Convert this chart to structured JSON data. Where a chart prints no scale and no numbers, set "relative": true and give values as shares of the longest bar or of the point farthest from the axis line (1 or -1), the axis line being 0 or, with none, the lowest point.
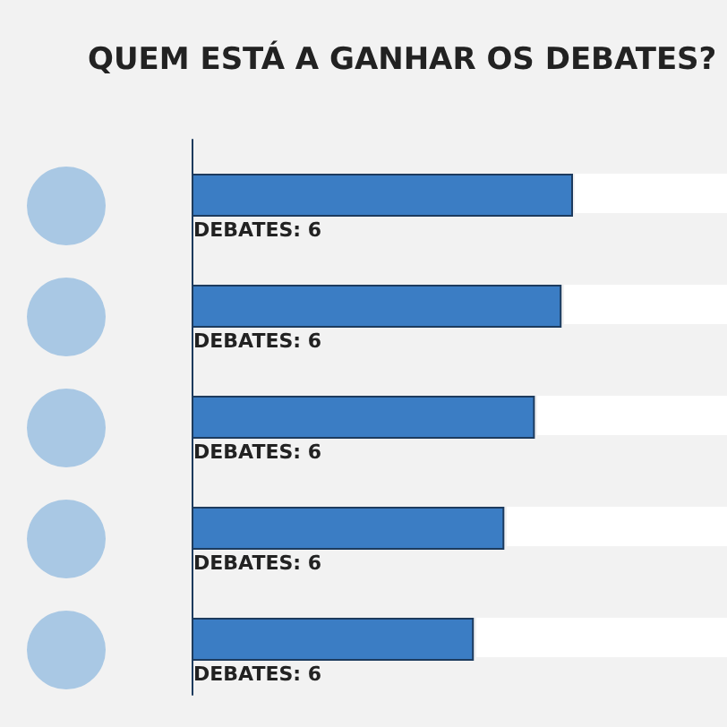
{
  "chart_data": {
    "type": "bar",
    "orientation": "horizontal",
    "relative": true,
    "title": "QUEM ESTÁ A GANHAR OS DEBATES?",
    "categories": [
      null,
      null,
      null,
      null,
      null
    ],
    "values": [
      1,
      0.97,
      0.9,
      0.82,
      0.74
    ],
    "color": "#3b7dc4",
    "annotations": [
      "DEBATES: 6",
      "DEBATES: 6",
      "DEBATES: 6",
      "DEBATES: 6",
      "DEBATES: 6"
    ],
    "data_labels": false
  }
}
